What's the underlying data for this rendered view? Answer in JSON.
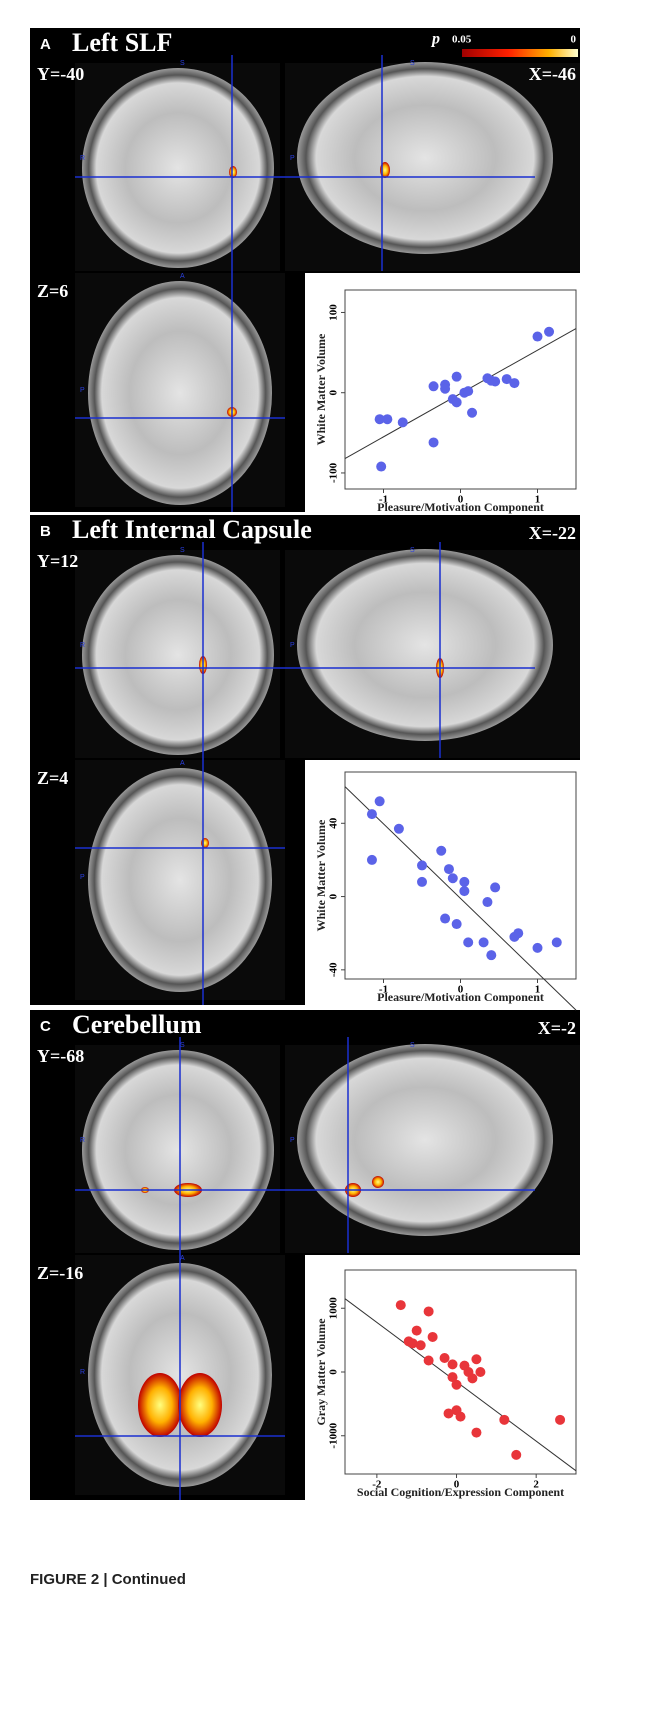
{
  "panels": [
    {
      "letter": "A",
      "title": "Left SLF",
      "slices": [
        "Y=-40",
        "X=-46",
        "Z=6"
      ],
      "orientation": [
        "S",
        "R",
        "S",
        "P",
        "A",
        "P"
      ]
    },
    {
      "letter": "B",
      "title": "Left Internal Capsule",
      "slices": [
        "Y=12",
        "X=-22",
        "Z=4"
      ],
      "orientation": [
        "S",
        "R",
        "S",
        "P",
        "A",
        "P"
      ]
    },
    {
      "letter": "C",
      "title": "Cerebellum",
      "slices": [
        "Y=-68",
        "X=-2",
        "Z=-16"
      ],
      "orientation": [
        "S",
        "R",
        "S",
        "P",
        "A",
        "R"
      ]
    }
  ],
  "colorbar": {
    "label": "p",
    "min_label": "0.05",
    "max_label": "0"
  },
  "chart_data": [
    {
      "type": "scatter",
      "x_label": "Pleasure/Motivation Component",
      "y_label": "White Matter Volume",
      "color": "#5b63e8",
      "x": [
        -1.05,
        -0.95,
        -0.75,
        -1.03,
        -0.35,
        -0.35,
        -0.2,
        -0.05,
        -0.1,
        -0.05,
        0.05,
        0.1,
        0.15,
        0.35,
        0.4,
        0.45,
        0.6,
        0.7,
        1.0,
        1.15,
        -0.2
      ],
      "values": [
        -33,
        -33,
        -37,
        -92,
        -62,
        8,
        10,
        20,
        -8,
        -12,
        0,
        2,
        -25,
        18,
        15,
        14,
        17,
        12,
        70,
        76,
        5
      ],
      "trend_line": {
        "x": [
          -1.5,
          1.5
        ],
        "y": [
          -82,
          80
        ]
      },
      "xlim": [
        -1.5,
        1.5
      ],
      "ylim": [
        -120,
        128
      ],
      "xticks": [
        -1,
        0,
        1
      ],
      "yticks": [
        -100,
        0,
        100
      ]
    },
    {
      "type": "scatter",
      "x_label": "Pleasure/Motivation Component",
      "y_label": "White Matter Volume",
      "color": "#5b63e8",
      "x": [
        -1.15,
        -1.05,
        -1.15,
        -0.8,
        -0.5,
        -0.5,
        -0.25,
        -0.2,
        -0.1,
        -0.05,
        0.05,
        0.05,
        0.1,
        0.3,
        0.35,
        0.4,
        0.45,
        0.7,
        0.75,
        1.0,
        1.25,
        -0.15
      ],
      "values": [
        45,
        52,
        20,
        37,
        17,
        8,
        25,
        -12,
        10,
        -15,
        8,
        3,
        -25,
        -25,
        -3,
        -32,
        5,
        -22,
        -20,
        -28,
        -25,
        15
      ],
      "trend_line": {
        "x": [
          -1.5,
          1.5
        ],
        "y": [
          60,
          -62
        ]
      },
      "xlim": [
        -1.5,
        1.5
      ],
      "ylim": [
        -45,
        68
      ],
      "xticks": [
        -1,
        0,
        1
      ],
      "yticks": [
        -40,
        0,
        40
      ]
    },
    {
      "type": "scatter",
      "x_label": "Social Cognition/Expression Component",
      "y_label": "Gray Matter Volume",
      "color": "#e8353a",
      "x": [
        -1.4,
        -1.2,
        -1.1,
        -1.0,
        -0.9,
        -0.7,
        -0.7,
        -0.6,
        -0.3,
        -0.1,
        -0.1,
        0,
        0,
        0.1,
        0.2,
        0.3,
        0.4,
        0.5,
        0.6,
        0.5,
        1.2,
        1.5,
        2.6,
        -0.2
      ],
      "values": [
        1050,
        480,
        450,
        650,
        420,
        950,
        180,
        550,
        220,
        120,
        -80,
        -200,
        -600,
        -700,
        100,
        0,
        -100,
        200,
        0,
        -950,
        -750,
        -1300,
        -750,
        -650
      ],
      "trend_line": {
        "x": [
          -2.8,
          3.0
        ],
        "y": [
          1150,
          -1550
        ]
      },
      "xlim": [
        -2.8,
        3.0
      ],
      "ylim": [
        -1600,
        1600
      ],
      "xticks": [
        -2,
        0,
        2
      ],
      "yticks": [
        -1000,
        0,
        1000
      ]
    }
  ],
  "caption": "FIGURE 2 | Continued"
}
